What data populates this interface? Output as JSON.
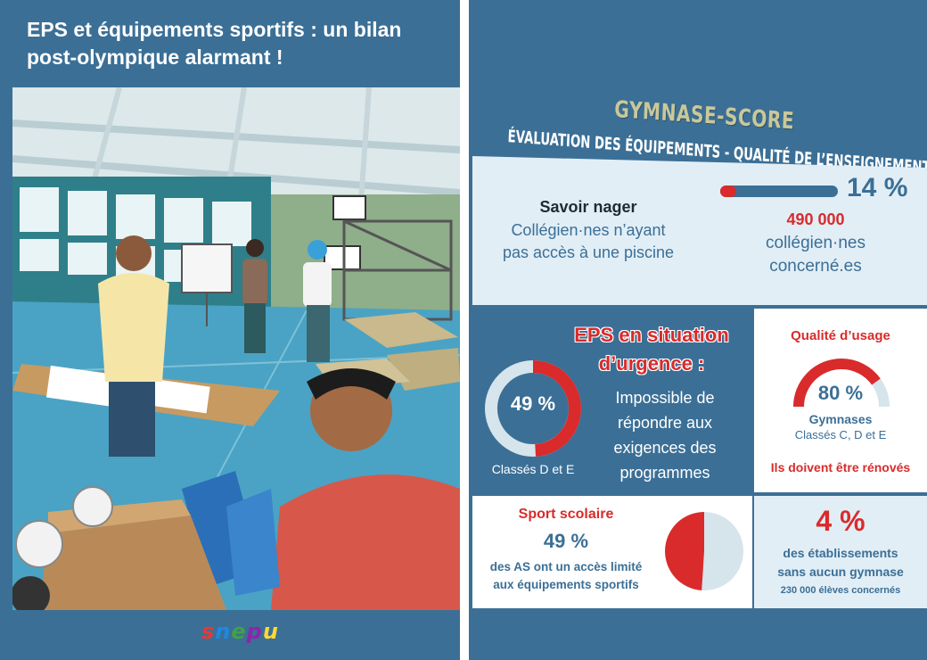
{
  "left": {
    "title_line1": "EPS et équipements sportifs : un bilan",
    "title_line2": "post-olympique alarmant !",
    "logo_letters": [
      "s",
      "n",
      "e",
      "p",
      "u"
    ]
  },
  "right": {
    "title": "GYMNASE-SCORE",
    "subtitle": "ÉVALUATION DES ÉQUIPEMENTS - QUALITÉ DE L’ENSEIGNEMENT",
    "swim": {
      "label": "Savoir nager",
      "desc_line1": "Collégien·nes n’ayant",
      "desc_line2": "pas accès à une piscine",
      "percent": "14 %",
      "fraction": 0.14,
      "count": "490 000",
      "count_line1": "collégien·nes",
      "count_line2": "concerné.es"
    },
    "urgence": {
      "title_line1": "EPS en situation",
      "title_line2": "d’urgence :",
      "percent": "49 %",
      "fraction": 0.49,
      "classes": "Classés D et E",
      "desc_line1": "Impossible de",
      "desc_line2": "répondre aux",
      "desc_line3": "exigences des",
      "desc_line4": "programmes"
    },
    "usage": {
      "title": "Qualité d’usage",
      "percent": "80 %",
      "fraction": 0.8,
      "label": "Gymnases",
      "classes": "Classés C, D et E",
      "note": "Ils doivent être rénovés"
    },
    "sport": {
      "title": "Sport scolaire",
      "percent": "49 %",
      "fraction": 0.49,
      "desc_line1": "des AS ont un accès limité",
      "desc_line2": "aux équipements sportifs"
    },
    "gym": {
      "percent": "4 %",
      "desc_line1": "des établissements",
      "desc_line2": "sans aucun gymnase",
      "note": "230 000 élèves concernés"
    }
  },
  "colors": {
    "panel_blue": "#3b6f96",
    "accent_red": "#d92b2b",
    "light_blue": "#e2eef6",
    "gauge_track": "#d6e4ec",
    "logo": [
      "#e53935",
      "#1e88e5",
      "#43a047",
      "#8e24aa",
      "#fdd835"
    ]
  }
}
